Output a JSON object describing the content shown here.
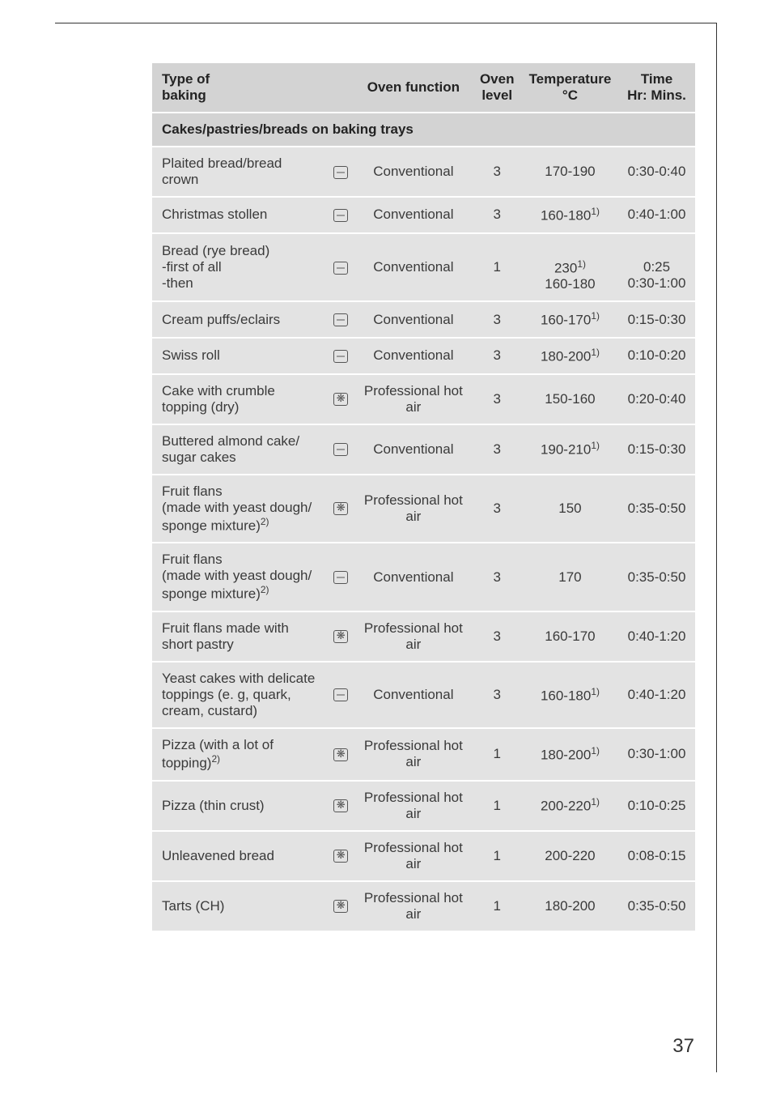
{
  "page_number": "37",
  "columns": {
    "type": "Type of\nbaking",
    "func": "Oven function",
    "level": "Oven\nlevel",
    "temp": "Temperature\n°C",
    "time": "Time\nHr: Mins."
  },
  "section_title": "Cakes/pastries/breads on baking trays",
  "icons": {
    "conv": "conventional-icon",
    "fan": "fan-icon"
  },
  "rows": [
    {
      "type_html": "Plaited bread/bread crown",
      "icon": "conv",
      "func": "Conventional",
      "level": "3",
      "temp_html": "170-190",
      "time_html": "0:30-0:40"
    },
    {
      "type_html": "Christmas stollen",
      "icon": "conv",
      "func": "Conventional",
      "level": "3",
      "temp_html": "160-180<sup>1)</sup>",
      "time_html": "0:40-1:00"
    },
    {
      "type_html": "Bread (rye bread)<br>-first of all<br>-then",
      "icon": "conv",
      "func": "Conventional",
      "level": "1",
      "temp_html": "<br>230<sup>1)</sup><br>160-180",
      "time_html": "<br>0:25<br>0:30-1:00"
    },
    {
      "type_html": "Cream puffs/eclairs",
      "icon": "conv",
      "func": "Conventional",
      "level": "3",
      "temp_html": "160-170<sup>1)</sup>",
      "time_html": "0:15-0:30"
    },
    {
      "type_html": "Swiss roll",
      "icon": "conv",
      "func": "Conventional",
      "level": "3",
      "temp_html": "180-200<sup>1)</sup>",
      "time_html": "0:10-0:20"
    },
    {
      "type_html": "Cake with crumble topping (dry)",
      "icon": "fan",
      "func": "Professional hot air",
      "level": "3",
      "temp_html": "150-160",
      "time_html": "0:20-0:40"
    },
    {
      "type_html": "Buttered almond cake/ sugar cakes",
      "icon": "conv",
      "func": "Conventional",
      "level": "3",
      "temp_html": "190-210<sup>1)</sup>",
      "time_html": "0:15-0:30"
    },
    {
      "type_html": "Fruit flans<br>(made with yeast dough/ sponge mixture)<sup>2)</sup>",
      "icon": "fan",
      "func": "Professional hot air",
      "level": "3",
      "temp_html": "150",
      "time_html": "0:35-0:50"
    },
    {
      "type_html": "Fruit flans<br>(made with yeast dough/ sponge mixture)<sup>2)</sup>",
      "icon": "conv",
      "func": "Conventional",
      "level": "3",
      "temp_html": "170",
      "time_html": "0:35-0:50"
    },
    {
      "type_html": "Fruit flans made with short pastry",
      "icon": "fan",
      "func": "Professional hot air",
      "level": "3",
      "temp_html": "160-170",
      "time_html": "0:40-1:20"
    },
    {
      "type_html": "Yeast cakes with delicate toppings (e. g, quark, cream, custard)",
      "icon": "conv",
      "func": "Conventional",
      "level": "3",
      "temp_html": "160-180<sup>1)</sup>",
      "time_html": "0:40-1:20"
    },
    {
      "type_html": "Pizza (with a lot of topping)<sup>2)</sup>",
      "icon": "fan",
      "func": "Professional hot air",
      "level": "1",
      "temp_html": "180-200<sup>1)</sup>",
      "time_html": "0:30-1:00"
    },
    {
      "type_html": "Pizza (thin crust)",
      "icon": "fan",
      "func": "Professional hot air",
      "level": "1",
      "temp_html": "200-220<sup>1)</sup>",
      "time_html": "0:10-0:25"
    },
    {
      "type_html": "Unleavened bread",
      "icon": "fan",
      "func": "Professional hot air",
      "level": "1",
      "temp_html": "200-220",
      "time_html": "0:08-0:15"
    },
    {
      "type_html": "Tarts (CH)",
      "icon": "fan",
      "func": "Professional hot air",
      "level": "1",
      "temp_html": "180-200",
      "time_html": "0:35-0:50"
    }
  ]
}
